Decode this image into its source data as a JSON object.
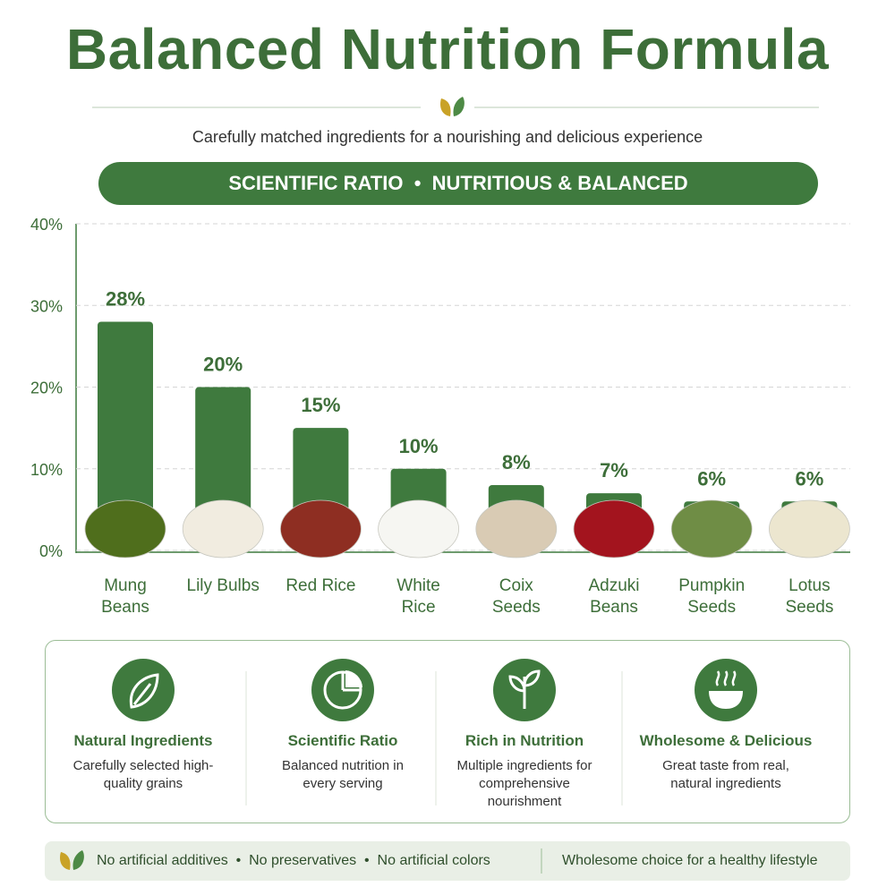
{
  "header": {
    "title": "Balanced Nutrition Formula",
    "subtitle": "Carefully matched ingredients for a nourishing and delicious experience",
    "banner": "SCIENTIFIC RATIO  •  NUTRITIOUS & BALANCED"
  },
  "chart_data": {
    "type": "bar",
    "categories": [
      "Mung Beans",
      "Lily Bulbs",
      "Red Rice",
      "White Rice",
      "Coix Seeds",
      "Adzuki Beans",
      "Pumpkin Seeds",
      "Lotus Seeds"
    ],
    "values": [
      28,
      20,
      15,
      10,
      8,
      7,
      6,
      6
    ],
    "value_labels": [
      "28%",
      "20%",
      "15%",
      "10%",
      "8%",
      "7%",
      "6%",
      "6%"
    ],
    "color": "#3f7a3e",
    "ylim": [
      0,
      40
    ],
    "yticks": [
      {
        "value": 0,
        "label": "0%"
      },
      {
        "value": 10,
        "label": "10%"
      },
      {
        "value": 20,
        "label": "20%"
      },
      {
        "value": 30,
        "label": "30%"
      },
      {
        "value": 40,
        "label": "40%"
      }
    ],
    "grid": true
  },
  "features": [
    {
      "title": "Natural Ingredients",
      "text": "Carefully selected high-quality grains"
    },
    {
      "title": "Scientific Ratio",
      "text": "Balanced nutrition in every serving"
    },
    {
      "title": "Rich in Nutrition",
      "text": "Multiple ingredients for comprehensive nourishment"
    },
    {
      "title": "Wholesome & Delicious",
      "text": "Great taste from real, natural ingredients"
    }
  ],
  "footer": {
    "claims": "No artificial additives  •  No preservatives  •  No artificial colors",
    "tagline": "Wholesome choice for a healthy lifestyle"
  }
}
